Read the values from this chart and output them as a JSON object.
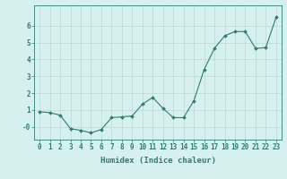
{
  "x": [
    0,
    1,
    2,
    3,
    4,
    5,
    6,
    7,
    8,
    9,
    10,
    11,
    12,
    13,
    14,
    15,
    16,
    17,
    18,
    19,
    20,
    21,
    22,
    23
  ],
  "y": [
    0.9,
    0.85,
    0.7,
    -0.1,
    -0.2,
    -0.35,
    -0.15,
    0.55,
    0.6,
    0.65,
    1.35,
    1.75,
    1.1,
    0.55,
    0.55,
    1.55,
    3.4,
    4.65,
    5.4,
    5.65,
    5.65,
    4.65,
    4.7,
    6.5
  ],
  "line_color": "#2e7d6e",
  "marker": "D",
  "marker_size": 2.0,
  "bg_color": "#d6f0ef",
  "grid_color": "#c0d8d5",
  "axis_color": "#2e7d6e",
  "xlabel": "Humidex (Indice chaleur)",
  "xlabel_fontsize": 6.5,
  "tick_fontsize": 5.5,
  "ytick_labels": [
    "-0",
    "1",
    "2",
    "3",
    "4",
    "5",
    "6"
  ],
  "ytick_vals": [
    0,
    1,
    2,
    3,
    4,
    5,
    6
  ],
  "ylim": [
    -0.75,
    7.2
  ],
  "xlim": [
    -0.5,
    23.5
  ]
}
